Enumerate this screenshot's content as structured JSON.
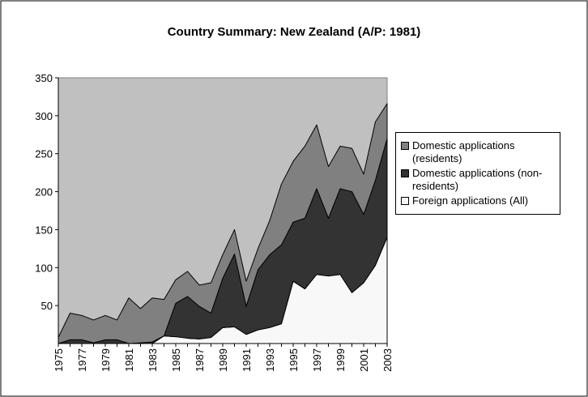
{
  "chart_data": {
    "type": "stacked-area",
    "title": "Country Summary:  New Zealand (A/P:  1981)",
    "categories": [
      "1975",
      null,
      "1977",
      null,
      "1979",
      null,
      "1981",
      null,
      "1983",
      null,
      "1985",
      null,
      "1987",
      null,
      "1989",
      null,
      "1991",
      null,
      "1993",
      null,
      "1995",
      null,
      "1997",
      null,
      "1999",
      null,
      "2001",
      null,
      "2003"
    ],
    "series": [
      {
        "name": "Domestic applications (residents)",
        "color": "#808080",
        "values": [
          8,
          35,
          32,
          30,
          32,
          26,
          60,
          45,
          58,
          48,
          31,
          33,
          28,
          40,
          31,
          32,
          33,
          28,
          45,
          80,
          80,
          95,
          84,
          68,
          56,
          57,
          53,
          77,
          46
        ]
      },
      {
        "name": "Domestic applications (non-residents)",
        "color": "#333333",
        "values": [
          0,
          5,
          5,
          1,
          5,
          5,
          0,
          1,
          2,
          0,
          44,
          55,
          43,
          32,
          65,
          96,
          37,
          79,
          96,
          104,
          78,
          93,
          113,
          76,
          113,
          133,
          90,
          112,
          130
        ]
      },
      {
        "name": "Foreign applications (All)",
        "color": "#f8f8f8",
        "values": [
          0,
          0,
          0,
          0,
          0,
          0,
          0,
          0,
          0,
          10,
          9,
          7,
          6,
          8,
          21,
          22,
          12,
          18,
          21,
          26,
          82,
          72,
          91,
          89,
          91,
          67,
          80,
          103,
          140
        ]
      }
    ],
    "ylim": [
      0,
      350
    ],
    "yticks": [
      50,
      100,
      150,
      200,
      250,
      300,
      350
    ],
    "grid": false
  }
}
